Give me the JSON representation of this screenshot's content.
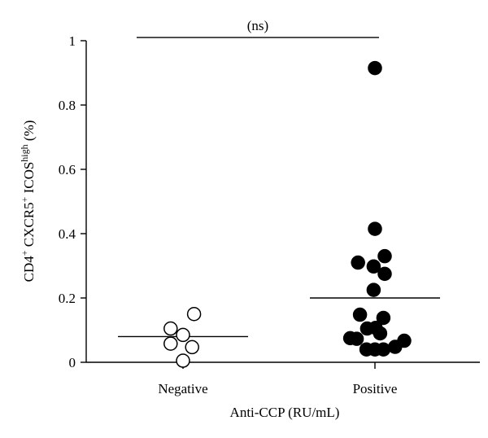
{
  "chart_data": {
    "type": "scatter",
    "categories": [
      "Negative",
      "Positive"
    ],
    "xlabel": "Anti-CCP (RU/mL)",
    "ylabel": {
      "parts": [
        {
          "text": "CD4",
          "sup": false
        },
        {
          "text": "+",
          "sup": true
        },
        {
          "text": " CXCR5",
          "sup": false
        },
        {
          "text": "+",
          "sup": true
        },
        {
          "text": " ICOS",
          "sup": false
        },
        {
          "text": "high",
          "sup": true
        },
        {
          "text": " (%)",
          "sup": false
        }
      ]
    },
    "ylim": [
      0,
      1
    ],
    "yticks": [
      "0",
      "0.2",
      "0.4",
      "0.6",
      "0.8",
      "1"
    ],
    "grid": false,
    "series": [
      {
        "category": "Negative",
        "marker": "open-circle",
        "points": [
          {
            "offset": -0.19,
            "y": 0.105
          },
          {
            "offset": 0.0,
            "y": 0.085
          },
          {
            "offset": 0.17,
            "y": 0.15
          },
          {
            "offset": -0.19,
            "y": 0.058
          },
          {
            "offset": 0.14,
            "y": 0.047
          },
          {
            "offset": 0.0,
            "y": 0.005
          }
        ],
        "mean": 0.08
      },
      {
        "category": "Positive",
        "marker": "filled-circle",
        "points": [
          {
            "offset": 0.0,
            "y": 0.915
          },
          {
            "offset": 0.0,
            "y": 0.415
          },
          {
            "offset": 0.15,
            "y": 0.33
          },
          {
            "offset": -0.26,
            "y": 0.31
          },
          {
            "offset": -0.02,
            "y": 0.298
          },
          {
            "offset": 0.15,
            "y": 0.275
          },
          {
            "offset": -0.02,
            "y": 0.225
          },
          {
            "offset": -0.23,
            "y": 0.148
          },
          {
            "offset": 0.13,
            "y": 0.138
          },
          {
            "offset": -0.12,
            "y": 0.105
          },
          {
            "offset": 0.01,
            "y": 0.107
          },
          {
            "offset": 0.08,
            "y": 0.09
          },
          {
            "offset": -0.38,
            "y": 0.075
          },
          {
            "offset": -0.28,
            "y": 0.073
          },
          {
            "offset": 0.45,
            "y": 0.067
          },
          {
            "offset": 0.31,
            "y": 0.048
          },
          {
            "offset": -0.13,
            "y": 0.04
          },
          {
            "offset": 0.0,
            "y": 0.04
          },
          {
            "offset": 0.13,
            "y": 0.04
          }
        ],
        "mean": 0.2
      }
    ],
    "annotation": {
      "text": "(ns)",
      "from": "Negative",
      "to": "Positive",
      "y": 1.01
    }
  }
}
